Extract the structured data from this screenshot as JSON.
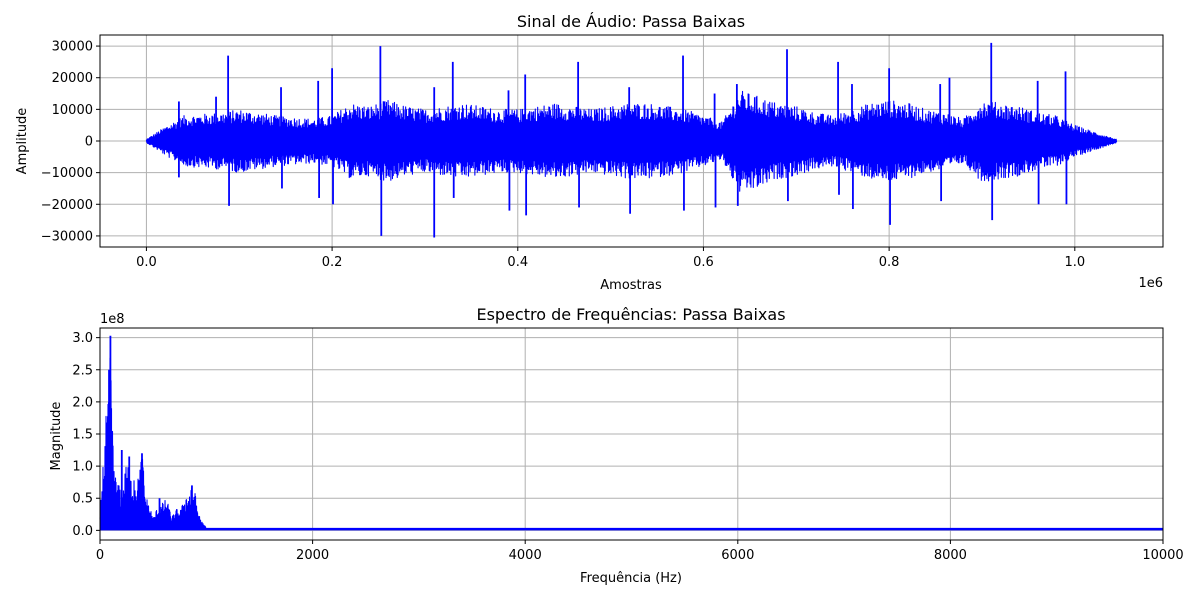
{
  "chart_data": [
    {
      "type": "line",
      "title": "Sinal de Áudio: Passa Baixas",
      "xlabel": "Amostras",
      "ylabel": "Amplitude",
      "x_offset_label": "1e6",
      "y_offset_label": "",
      "xlim": [
        -50000,
        1095000
      ],
      "ylim": [
        -33500,
        33500
      ],
      "grid": true,
      "color": "#0000ff",
      "x_ticks": [
        0,
        200000,
        400000,
        600000,
        800000,
        1000000
      ],
      "x_tick_labels": [
        "0.0",
        "0.2",
        "0.4",
        "0.6",
        "0.8",
        "1.0"
      ],
      "y_ticks": [
        -30000,
        -20000,
        -10000,
        0,
        10000,
        20000,
        30000
      ],
      "y_tick_labels": [
        "−30000",
        "−20000",
        "−10000",
        "0",
        "10000",
        "20000",
        "30000"
      ],
      "envelope": {
        "x": [
          0,
          20000,
          40000,
          60000,
          80000,
          100000,
          120000,
          140000,
          160000,
          180000,
          200000,
          220000,
          240000,
          260000,
          280000,
          300000,
          320000,
          340000,
          360000,
          380000,
          400000,
          420000,
          440000,
          460000,
          480000,
          500000,
          520000,
          540000,
          560000,
          580000,
          600000,
          620000,
          640000,
          660000,
          680000,
          700000,
          720000,
          740000,
          760000,
          780000,
          800000,
          820000,
          840000,
          860000,
          880000,
          900000,
          920000,
          940000,
          960000,
          980000,
          1000000,
          1020000,
          1045000
        ],
        "max": [
          500,
          4500,
          8000,
          8500,
          9000,
          10000,
          9000,
          8000,
          7500,
          7000,
          8000,
          12000,
          11000,
          13000,
          11000,
          10000,
          11000,
          12000,
          11000,
          10000,
          10000,
          11000,
          12000,
          11000,
          10000,
          11000,
          12000,
          12000,
          11000,
          10000,
          8000,
          6000,
          16000,
          14000,
          12000,
          11000,
          9000,
          8000,
          10000,
          12000,
          13000,
          12000,
          10000,
          9000,
          7000,
          13000,
          12000,
          11000,
          9000,
          8000,
          5000,
          3000,
          500
        ],
        "min": [
          -500,
          -4500,
          -8000,
          -8500,
          -9000,
          -10000,
          -9000,
          -8000,
          -7500,
          -7000,
          -8000,
          -12000,
          -11000,
          -13000,
          -11000,
          -10000,
          -11000,
          -12000,
          -11000,
          -10000,
          -10000,
          -11000,
          -12000,
          -11000,
          -10000,
          -11000,
          -12000,
          -12000,
          -11000,
          -10000,
          -8000,
          -6000,
          -17000,
          -15000,
          -12000,
          -11000,
          -9000,
          -8000,
          -10000,
          -12000,
          -13000,
          -12000,
          -10000,
          -9000,
          -7000,
          -13000,
          -12000,
          -11000,
          -9000,
          -8000,
          -5000,
          -3000,
          -500
        ]
      },
      "peaks": [
        {
          "x": 35000,
          "y": 12500
        },
        {
          "x": 35000,
          "y": -11500
        },
        {
          "x": 75000,
          "y": 14000
        },
        {
          "x": 88000,
          "y": 27000
        },
        {
          "x": 89000,
          "y": -20500
        },
        {
          "x": 145000,
          "y": 17000
        },
        {
          "x": 146000,
          "y": -15000
        },
        {
          "x": 185000,
          "y": 19000
        },
        {
          "x": 186000,
          "y": -18000
        },
        {
          "x": 200000,
          "y": 23000
        },
        {
          "x": 201000,
          "y": -20000
        },
        {
          "x": 252000,
          "y": 30000
        },
        {
          "x": 253000,
          "y": -30000
        },
        {
          "x": 310000,
          "y": -30500
        },
        {
          "x": 310000,
          "y": 17000
        },
        {
          "x": 330000,
          "y": 25000
        },
        {
          "x": 331000,
          "y": -18000
        },
        {
          "x": 390000,
          "y": 16000
        },
        {
          "x": 391000,
          "y": -22000
        },
        {
          "x": 408000,
          "y": 21000
        },
        {
          "x": 409000,
          "y": -23500
        },
        {
          "x": 465000,
          "y": 25000
        },
        {
          "x": 466000,
          "y": -21000
        },
        {
          "x": 520000,
          "y": 17000
        },
        {
          "x": 521000,
          "y": -23000
        },
        {
          "x": 578000,
          "y": 27000
        },
        {
          "x": 579000,
          "y": -22000
        },
        {
          "x": 612000,
          "y": 15000
        },
        {
          "x": 613000,
          "y": -21000
        },
        {
          "x": 636000,
          "y": 18000
        },
        {
          "x": 637000,
          "y": -20500
        },
        {
          "x": 690000,
          "y": 29000
        },
        {
          "x": 691000,
          "y": -19000
        },
        {
          "x": 745000,
          "y": 25000
        },
        {
          "x": 746000,
          "y": -17000
        },
        {
          "x": 760000,
          "y": 18000
        },
        {
          "x": 761000,
          "y": -21500
        },
        {
          "x": 800000,
          "y": 23000
        },
        {
          "x": 801000,
          "y": -26500
        },
        {
          "x": 855000,
          "y": 18000
        },
        {
          "x": 856000,
          "y": -19000
        },
        {
          "x": 865000,
          "y": 20000
        },
        {
          "x": 910000,
          "y": 31000
        },
        {
          "x": 911000,
          "y": -25000
        },
        {
          "x": 960000,
          "y": 19000
        },
        {
          "x": 961000,
          "y": -20000
        },
        {
          "x": 990000,
          "y": 22000
        },
        {
          "x": 991000,
          "y": -20000
        }
      ]
    },
    {
      "type": "line",
      "title": "Espectro de Frequências: Passa Baixas",
      "xlabel": "Frequência (Hz)",
      "ylabel": "Magnitude",
      "x_offset_label": "",
      "y_offset_label": "1e8",
      "xlim": [
        0,
        10000
      ],
      "ylim": [
        -15000000,
        315000000
      ],
      "grid": true,
      "color": "#0000ff",
      "x_ticks": [
        0,
        2000,
        4000,
        6000,
        8000,
        10000
      ],
      "x_tick_labels": [
        "0",
        "2000",
        "4000",
        "6000",
        "8000",
        "10000"
      ],
      "y_ticks": [
        0,
        50000000,
        100000000,
        150000000,
        200000000,
        250000000,
        300000000
      ],
      "y_tick_labels": [
        "0.0",
        "0.5",
        "1.0",
        "1.5",
        "2.0",
        "2.5",
        "3.0"
      ],
      "cutoff_hz": 1000,
      "baseline": 2000000,
      "envelope": {
        "x": [
          0,
          25,
          50,
          75,
          90,
          100,
          110,
          125,
          150,
          175,
          200,
          225,
          250,
          275,
          300,
          325,
          350,
          375,
          400,
          425,
          450,
          475,
          500,
          525,
          550,
          575,
          600,
          625,
          650,
          675,
          700,
          725,
          750,
          775,
          800,
          825,
          850,
          875,
          900,
          925,
          950,
          975,
          1000,
          1010
        ],
        "max": [
          20000000,
          95000000,
          170000000,
          200000000,
          250000000,
          300000000,
          200000000,
          130000000,
          80000000,
          70000000,
          70000000,
          80000000,
          110000000,
          90000000,
          80000000,
          100000000,
          70000000,
          110000000,
          120000000,
          60000000,
          45000000,
          35000000,
          20000000,
          30000000,
          40000000,
          40000000,
          45000000,
          50000000,
          35000000,
          25000000,
          25000000,
          35000000,
          30000000,
          40000000,
          55000000,
          60000000,
          65000000,
          70000000,
          55000000,
          30000000,
          15000000,
          10000000,
          5000000,
          2000000
        ]
      },
      "peaks": [
        {
          "x": 85,
          "y": 250000000
        },
        {
          "x": 98,
          "y": 303000000
        },
        {
          "x": 105,
          "y": 190000000
        },
        {
          "x": 205,
          "y": 125000000
        },
        {
          "x": 275,
          "y": 115000000
        },
        {
          "x": 395,
          "y": 120000000
        },
        {
          "x": 560,
          "y": 50000000
        },
        {
          "x": 865,
          "y": 70000000
        }
      ]
    }
  ]
}
